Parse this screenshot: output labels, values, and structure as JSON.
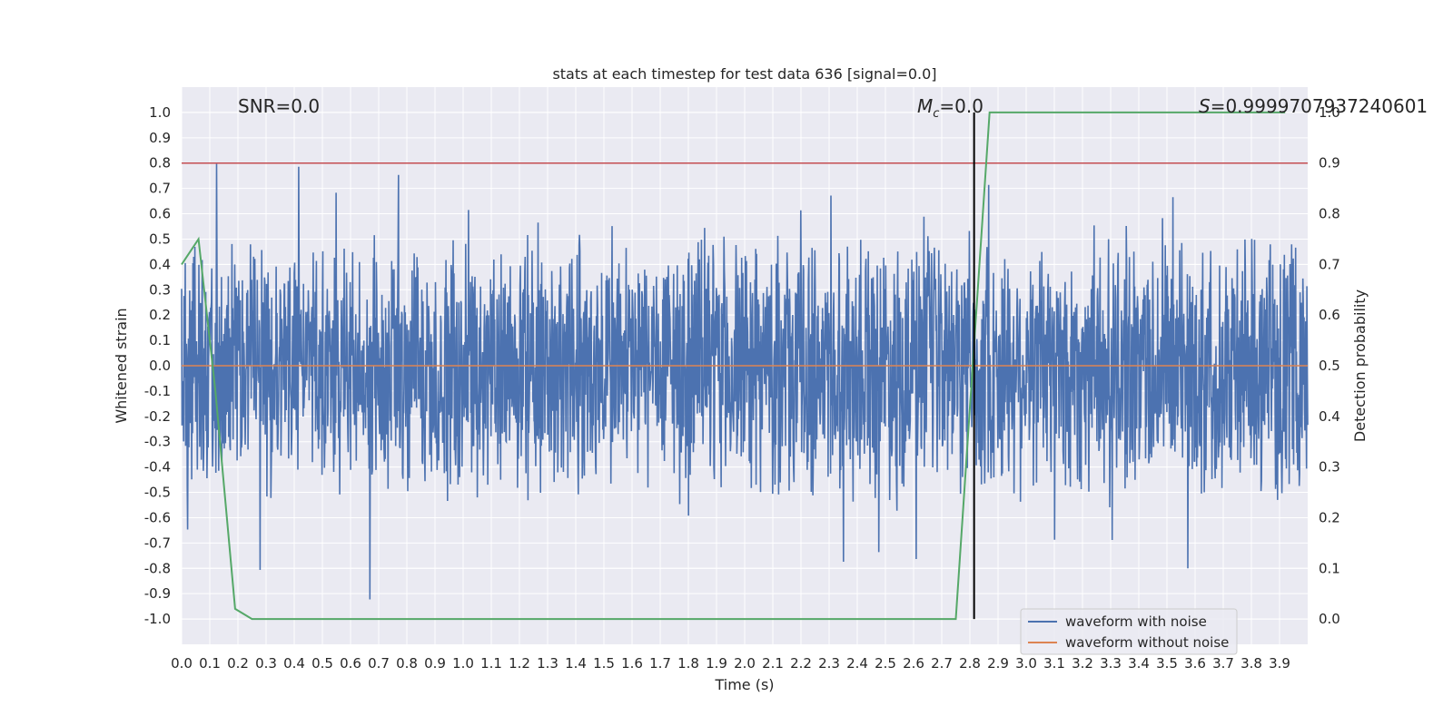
{
  "chart_data": {
    "type": "line",
    "title": "stats at each timestep for test data 636 [signal=0.0]",
    "xlabel": "Time (s)",
    "ylabel": "Whitened strain",
    "ylabel_right": "Detection probability",
    "xlim": [
      0.0,
      4.0
    ],
    "ylim": [
      -1.1,
      1.1
    ],
    "ylim_right": [
      -0.05,
      1.05
    ],
    "x_ticks": [
      "0.0",
      "0.1",
      "0.2",
      "0.3",
      "0.4",
      "0.5",
      "0.6",
      "0.7",
      "0.8",
      "0.9",
      "1.0",
      "1.1",
      "1.2",
      "1.3",
      "1.4",
      "1.5",
      "1.6",
      "1.7",
      "1.8",
      "1.9",
      "2.0",
      "2.1",
      "2.2",
      "2.3",
      "2.4",
      "2.5",
      "2.6",
      "2.7",
      "2.8",
      "2.9",
      "3.0",
      "3.1",
      "3.2",
      "3.3",
      "3.4",
      "3.5",
      "3.6",
      "3.7",
      "3.8",
      "3.9"
    ],
    "y_ticks": [
      "1.0",
      "0.9",
      "0.8",
      "0.7",
      "0.6",
      "0.5",
      "0.4",
      "0.3",
      "0.2",
      "0.1",
      "0.0",
      "-0.1",
      "-0.2",
      "-0.3",
      "-0.4",
      "-0.5",
      "-0.6",
      "-0.7",
      "-0.8",
      "-0.9",
      "-1.0"
    ],
    "y_ticks_right": [
      "1.0",
      "0.9",
      "0.8",
      "0.7",
      "0.6",
      "0.5",
      "0.4",
      "0.3",
      "0.2",
      "0.1",
      "0.0"
    ],
    "annotations": {
      "snr": "SNR=0.0",
      "mc_symbol": "M",
      "mc_sub": "c",
      "mc_value": "=0.0",
      "s_symbol": "S",
      "s_value": "=0.9999707937240601"
    },
    "series": [
      {
        "name": "waveform with noise",
        "color": "#4c72b0",
        "description": "noise waveform ranging approximately -1.0 to 1.0"
      },
      {
        "name": "waveform without noise",
        "color": "#dd8452",
        "values_constant": 0.0
      }
    ],
    "detection_probability": {
      "color": "#55a868",
      "x": [
        0.0,
        0.06,
        0.12,
        0.19,
        0.25,
        2.75,
        2.87,
        3.92
      ],
      "y": [
        0.7,
        0.75,
        0.45,
        0.02,
        0.0,
        0.0,
        1.0,
        1.0
      ]
    },
    "threshold_line": {
      "y_right": 0.9,
      "color": "#c44e52"
    },
    "vertical_marker": {
      "x": 2.815,
      "color": "#000000"
    },
    "colors": {
      "background": "#eaeaf2",
      "grid": "#ffffff",
      "noise": "#4c72b0",
      "clean": "#dd8452",
      "probability": "#55a868",
      "threshold": "#c44e52",
      "marker": "#000000"
    }
  }
}
